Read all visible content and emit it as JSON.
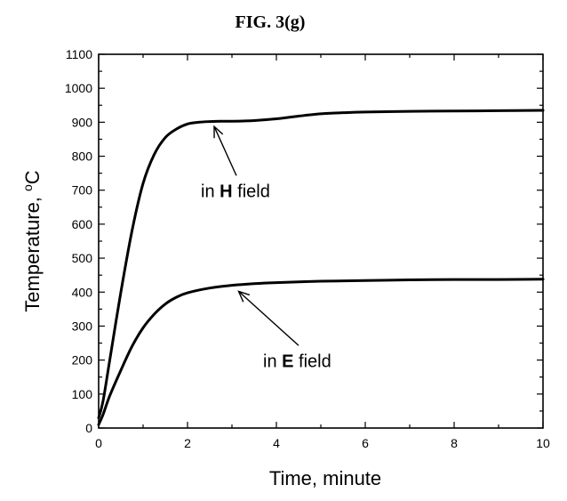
{
  "figure": {
    "title": "FIG. 3(g)"
  },
  "chart_data": {
    "type": "line",
    "title": "FIG. 3(g)",
    "xlabel": "Time, minute",
    "ylabel_prefix": "Temperature, ",
    "ylabel_degree": "o",
    "ylabel_unit": "C",
    "xlim": [
      0,
      10
    ],
    "ylim": [
      0,
      1100
    ],
    "xticks": [
      0,
      2,
      4,
      6,
      8,
      10
    ],
    "yticks": [
      0,
      100,
      200,
      300,
      400,
      500,
      600,
      700,
      800,
      900,
      1000,
      1100
    ],
    "grid": false,
    "series": [
      {
        "x": [
          0,
          0.1,
          0.25,
          0.5,
          0.75,
          1.0,
          1.25,
          1.5,
          1.75,
          2.0,
          2.25,
          2.5,
          2.75,
          3.0,
          3.5,
          4.0,
          4.5,
          5.0,
          5.5,
          6.0,
          7.0,
          8.0,
          9.0,
          10.0
        ],
        "y": [
          30,
          80,
          200,
          400,
          580,
          720,
          805,
          855,
          880,
          895,
          900,
          902,
          903,
          903,
          905,
          910,
          918,
          925,
          928,
          930,
          932,
          933,
          934,
          935
        ]
      },
      {
        "x": [
          0,
          0.1,
          0.25,
          0.5,
          0.75,
          1.0,
          1.25,
          1.5,
          1.75,
          2.0,
          2.5,
          3.0,
          3.5,
          4.0,
          5.0,
          6.0,
          7.0,
          8.0,
          9.0,
          10.0
        ],
        "y": [
          10,
          40,
          95,
          170,
          240,
          295,
          335,
          365,
          385,
          398,
          412,
          420,
          425,
          428,
          432,
          434,
          436,
          437,
          437,
          438
        ]
      }
    ],
    "annotations": [
      {
        "prefix": "in ",
        "bold": "H",
        "suffix": " field",
        "arrow_to": [
          2.6,
          903
        ],
        "text_at": [
          2.3,
          680
        ]
      },
      {
        "prefix": "in ",
        "bold": "E",
        "suffix": " field",
        "arrow_to": [
          3.15,
          418
        ],
        "text_at": [
          3.7,
          180
        ]
      }
    ]
  }
}
